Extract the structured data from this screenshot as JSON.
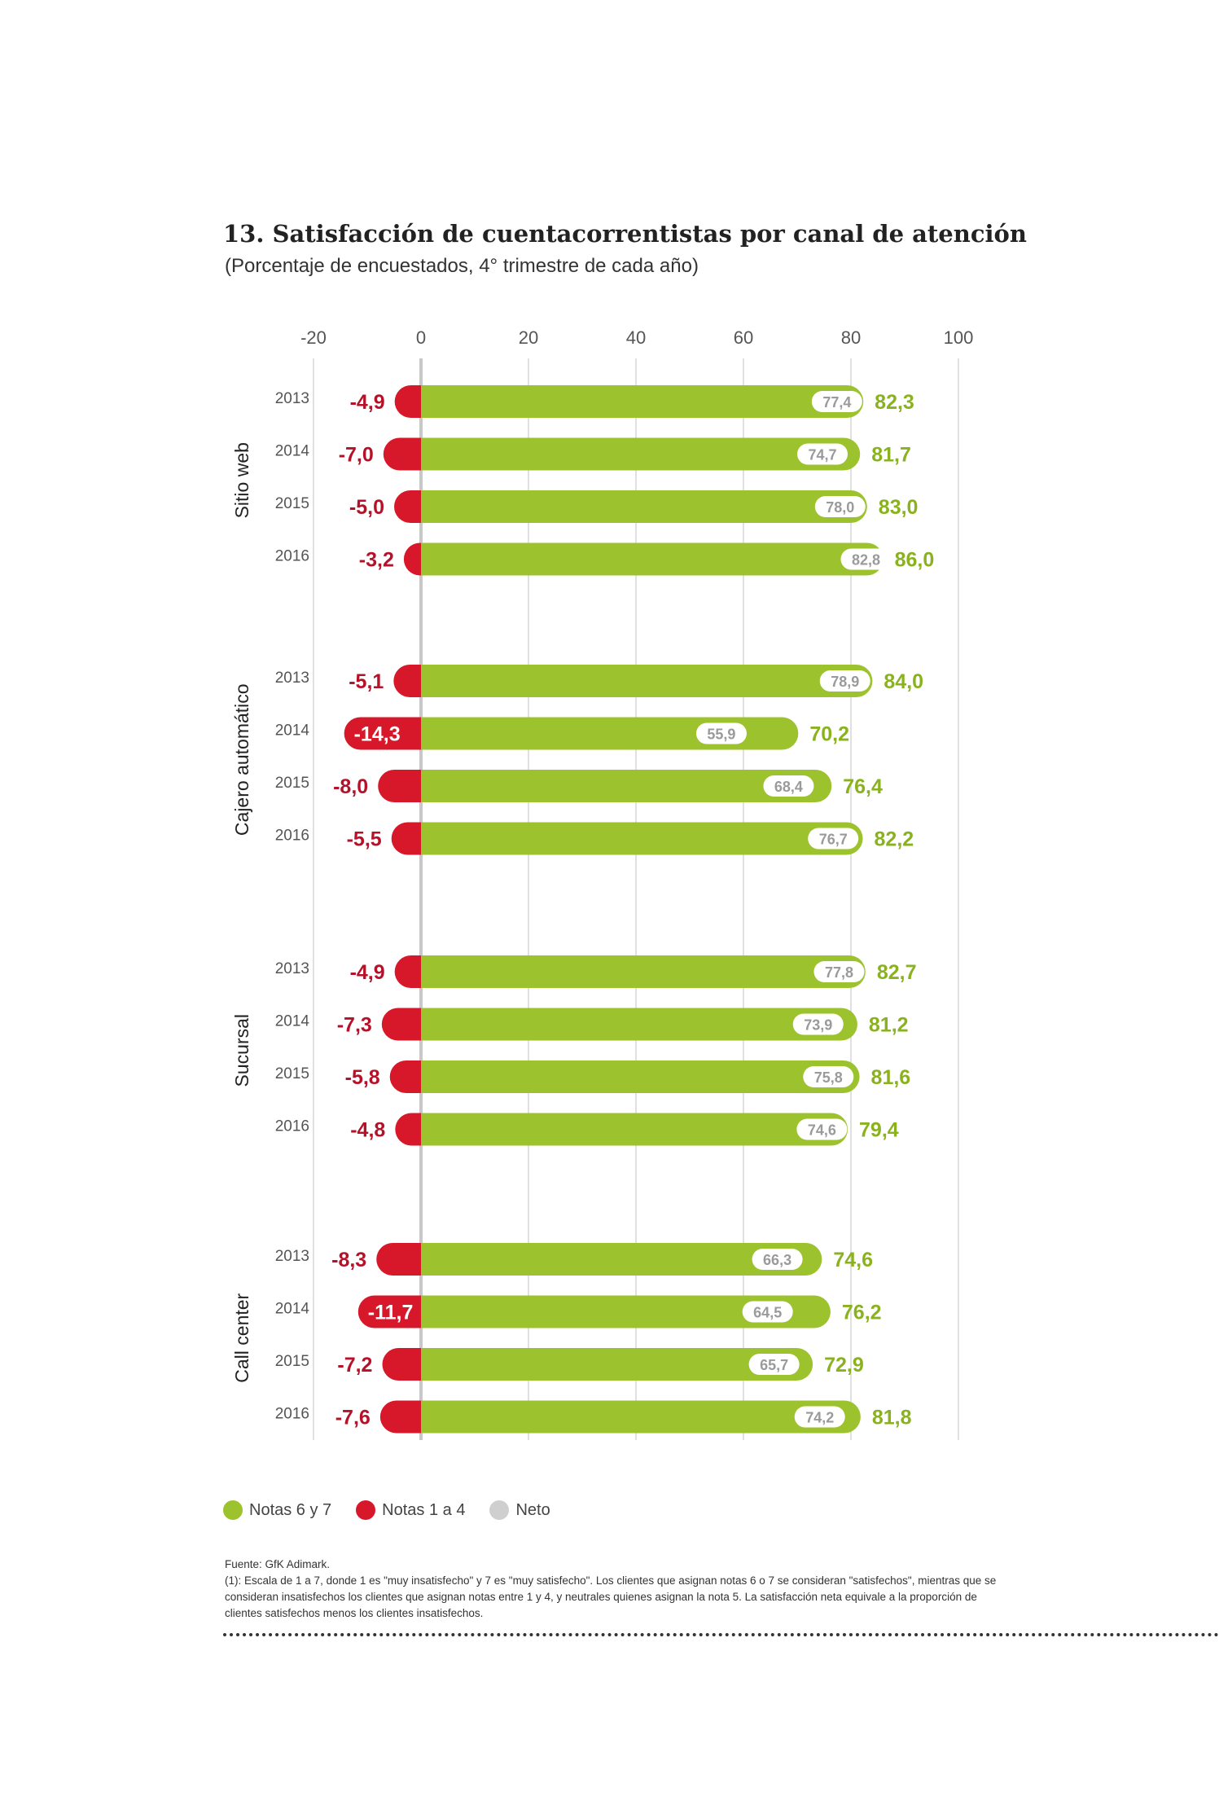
{
  "header": {
    "title": "13. Satisfacción de cuentacorrentistas por canal de atención",
    "subtitle": "(Porcentaje de encuestados, 4° trimestre de cada año)"
  },
  "colors": {
    "positive": "#9cc32e",
    "negative": "#d7182a",
    "positive_text": "#8ab21f",
    "negative_text": "#b5122a",
    "net_pill": "#ffffff",
    "net_text": "#9a9a9a",
    "grid": "#d6d6d6",
    "zero_line": "#c8c8c8",
    "legend_net": "#cfcfcf"
  },
  "chart_data": {
    "type": "bar",
    "orientation": "horizontal",
    "x_axis": {
      "ticks": [
        -20,
        0,
        20,
        40,
        60,
        80,
        100
      ],
      "xlim": [
        -20,
        100
      ],
      "position": "top"
    },
    "grid": true,
    "legend_placement": "bottom-left",
    "groups": [
      {
        "name": "Sitio web",
        "rows": [
          {
            "year": "2013",
            "neg": -4.9,
            "pos": 82.3,
            "net": 77.4,
            "neg_label": "-4,9",
            "pos_label": "82,3",
            "net_label": "77,4"
          },
          {
            "year": "2014",
            "neg": -7.0,
            "pos": 81.7,
            "net": 74.7,
            "neg_label": "-7,0",
            "pos_label": "81,7",
            "net_label": "74,7"
          },
          {
            "year": "2015",
            "neg": -5.0,
            "pos": 83.0,
            "net": 78.0,
            "neg_label": "-5,0",
            "pos_label": "83,0",
            "net_label": "78,0"
          },
          {
            "year": "2016",
            "neg": -3.2,
            "pos": 86.0,
            "net": 82.8,
            "neg_label": "-3,2",
            "pos_label": "86,0",
            "net_label": "82,8"
          }
        ]
      },
      {
        "name": "Cajero automático",
        "rows": [
          {
            "year": "2013",
            "neg": -5.1,
            "pos": 84.0,
            "net": 78.9,
            "neg_label": "-5,1",
            "pos_label": "84,0",
            "net_label": "78,9"
          },
          {
            "year": "2014",
            "neg": -14.3,
            "pos": 70.2,
            "net": 55.9,
            "neg_label": "-14,3",
            "pos_label": "70,2",
            "net_label": "55,9"
          },
          {
            "year": "2015",
            "neg": -8.0,
            "pos": 76.4,
            "net": 68.4,
            "neg_label": "-8,0",
            "pos_label": "76,4",
            "net_label": "68,4"
          },
          {
            "year": "2016",
            "neg": -5.5,
            "pos": 82.2,
            "net": 76.7,
            "neg_label": "-5,5",
            "pos_label": "82,2",
            "net_label": "76,7"
          }
        ]
      },
      {
        "name": "Sucursal",
        "rows": [
          {
            "year": "2013",
            "neg": -4.9,
            "pos": 82.7,
            "net": 77.8,
            "neg_label": "-4,9",
            "pos_label": "82,7",
            "net_label": "77,8"
          },
          {
            "year": "2014",
            "neg": -7.3,
            "pos": 81.2,
            "net": 73.9,
            "neg_label": "-7,3",
            "pos_label": "81,2",
            "net_label": "73,9"
          },
          {
            "year": "2015",
            "neg": -5.8,
            "pos": 81.6,
            "net": 75.8,
            "neg_label": "-5,8",
            "pos_label": "81,6",
            "net_label": "75,8"
          },
          {
            "year": "2016",
            "neg": -4.8,
            "pos": 79.4,
            "net": 74.6,
            "neg_label": "-4,8",
            "pos_label": "79,4",
            "net_label": "74,6"
          }
        ]
      },
      {
        "name": "Call center",
        "rows": [
          {
            "year": "2013",
            "neg": -8.3,
            "pos": 74.6,
            "net": 66.3,
            "neg_label": "-8,3",
            "pos_label": "74,6",
            "net_label": "66,3"
          },
          {
            "year": "2014",
            "neg": -11.7,
            "pos": 76.2,
            "net": 64.5,
            "neg_label": "-11,7",
            "pos_label": "76,2",
            "net_label": "64,5"
          },
          {
            "year": "2015",
            "neg": -7.2,
            "pos": 72.9,
            "net": 65.7,
            "neg_label": "-7,2",
            "pos_label": "72,9",
            "net_label": "65,7"
          },
          {
            "year": "2016",
            "neg": -7.6,
            "pos": 81.8,
            "net": 74.2,
            "neg_label": "-7,6",
            "pos_label": "81,8",
            "net_label": "74,2"
          }
        ]
      }
    ]
  },
  "legend": {
    "items": [
      {
        "label": "Notas 6 y 7"
      },
      {
        "label": "Notas 1 a 4"
      },
      {
        "label": "Neto"
      }
    ]
  },
  "footnotes": {
    "source": "Fuente: GfK Adimark.",
    "note": "(1): Escala de 1 a 7, donde 1 es \"muy insatisfecho\" y 7 es \"muy satisfecho\". Los clientes que asignan notas 6 o 7 se consideran \"satisfechos\", mientras que se consideran insatisfechos los clientes que asignan notas entre 1 y 4, y neutrales quienes asignan la nota 5. La satisfacción neta equivale a la proporción de clientes satisfechos menos los clientes insatisfechos."
  }
}
